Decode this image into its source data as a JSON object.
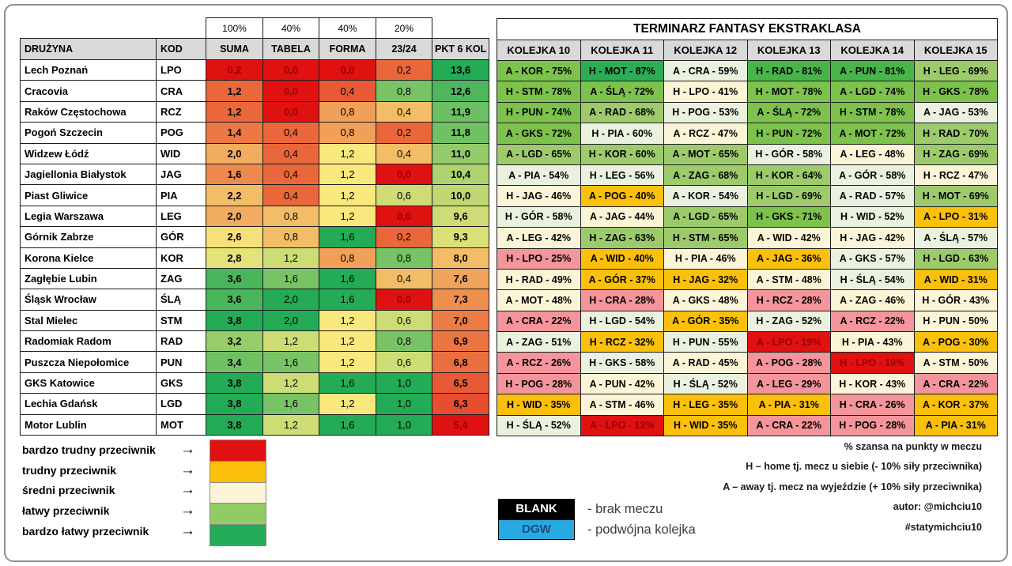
{
  "chart_data": [
    {
      "type": "table",
      "name": "team-difficulty-scores",
      "weights_row": [
        "100%",
        "40%",
        "40%",
        "20%"
      ],
      "headers": [
        "DRUŻYNA",
        "KOD",
        "SUMA",
        "TABELA",
        "FORMA",
        "23/24",
        "PKT 6 KOL"
      ],
      "value_keys": [
        "suma",
        "tabela",
        "forma",
        "s2324",
        "pkt"
      ],
      "color_scale": {
        "anchors": [
          "#E01111",
          "#F8E87D",
          "#23AB55"
        ],
        "dark_red_text": "#9C0006",
        "ranges": {
          "suma": [
            0.2,
            2.7,
            3.8
          ],
          "tabela": [
            0.0,
            1.0,
            2.0
          ],
          "forma": [
            0.0,
            1.2,
            1.6
          ],
          "s2324": [
            0.0,
            0.5,
            1.0
          ],
          "pkt": [
            5.4,
            8.65,
            13.6
          ]
        }
      },
      "rows": [
        {
          "team": "Lech Poznań",
          "kod": "LPO",
          "suma": 0.2,
          "tabela": 0.0,
          "forma": 0.0,
          "s2324": 0.2,
          "pkt": 13.6
        },
        {
          "team": "Cracovia",
          "kod": "CRA",
          "suma": 1.2,
          "tabela": 0.0,
          "forma": 0.4,
          "s2324": 0.8,
          "pkt": 12.6
        },
        {
          "team": "Raków Częstochowa",
          "kod": "RCZ",
          "suma": 1.2,
          "tabela": 0.0,
          "forma": 0.8,
          "s2324": 0.4,
          "pkt": 11.9
        },
        {
          "team": "Pogoń Szczecin",
          "kod": "POG",
          "suma": 1.4,
          "tabela": 0.4,
          "forma": 0.8,
          "s2324": 0.2,
          "pkt": 11.8
        },
        {
          "team": "Widzew Łódź",
          "kod": "WID",
          "suma": 2.0,
          "tabela": 0.4,
          "forma": 1.2,
          "s2324": 0.4,
          "pkt": 11.0
        },
        {
          "team": "Jagiellonia Białystok",
          "kod": "JAG",
          "suma": 1.6,
          "tabela": 0.4,
          "forma": 1.2,
          "s2324": 0.0,
          "pkt": 10.4
        },
        {
          "team": "Piast Gliwice",
          "kod": "PIA",
          "suma": 2.2,
          "tabela": 0.4,
          "forma": 1.2,
          "s2324": 0.6,
          "pkt": 10.0
        },
        {
          "team": "Legia Warszawa",
          "kod": "LEG",
          "suma": 2.0,
          "tabela": 0.8,
          "forma": 1.2,
          "s2324": 0.0,
          "pkt": 9.6
        },
        {
          "team": "Górnik Zabrze",
          "kod": "GÓR",
          "suma": 2.6,
          "tabela": 0.8,
          "forma": 1.6,
          "s2324": 0.2,
          "pkt": 9.3
        },
        {
          "team": "Korona Kielce",
          "kod": "KOR",
          "suma": 2.8,
          "tabela": 1.2,
          "forma": 0.8,
          "s2324": 0.8,
          "pkt": 8.0
        },
        {
          "team": "Zagłębie Lubin",
          "kod": "ZAG",
          "suma": 3.6,
          "tabela": 1.6,
          "forma": 1.6,
          "s2324": 0.4,
          "pkt": 7.6
        },
        {
          "team": "Śląsk Wrocław",
          "kod": "ŚLĄ",
          "suma": 3.6,
          "tabela": 2.0,
          "forma": 1.6,
          "s2324": 0.0,
          "pkt": 7.3
        },
        {
          "team": "Stal Mielec",
          "kod": "STM",
          "suma": 3.8,
          "tabela": 2.0,
          "forma": 1.2,
          "s2324": 0.6,
          "pkt": 7.0
        },
        {
          "team": "Radomiak Radom",
          "kod": "RAD",
          "suma": 3.2,
          "tabela": 1.2,
          "forma": 1.2,
          "s2324": 0.8,
          "pkt": 6.9
        },
        {
          "team": "Puszcza Niepołomice",
          "kod": "PUN",
          "suma": 3.4,
          "tabela": 1.6,
          "forma": 1.2,
          "s2324": 0.6,
          "pkt": 6.8
        },
        {
          "team": "GKS Katowice",
          "kod": "GKS",
          "suma": 3.8,
          "tabela": 1.2,
          "forma": 1.6,
          "s2324": 1.0,
          "pkt": 6.5
        },
        {
          "team": "Lechia Gdańsk",
          "kod": "LGD",
          "suma": 3.8,
          "tabela": 1.6,
          "forma": 1.2,
          "s2324": 1.0,
          "pkt": 6.3
        },
        {
          "team": "Motor Lublin",
          "kod": "MOT",
          "suma": 3.8,
          "tabela": 1.2,
          "forma": 1.6,
          "s2324": 1.0,
          "pkt": 5.4
        }
      ]
    },
    {
      "type": "heatmap",
      "name": "fixture-schedule",
      "title": "TERMINARZ FANTASY EKSTRAKLASA",
      "headers": [
        "KOLEJKA 10",
        "KOLEJKA 11",
        "KOLEJKA 12",
        "KOLEJKA 13",
        "KOLEJKA 14",
        "KOLEJKA 15"
      ],
      "difficulty_buckets": [
        {
          "max_pct": 20,
          "bg": "#E01111",
          "fg": "#9C0006"
        },
        {
          "max_pct": 29,
          "bg": "#F4949B"
        },
        {
          "max_pct": 40,
          "bg": "#FBC00C"
        },
        {
          "max_pct": 50,
          "bg": "#FCF4D6"
        },
        {
          "max_pct": 59,
          "bg": "#EAF1DF"
        },
        {
          "max_pct": 70,
          "bg": "#9DCB6C"
        },
        {
          "max_pct": 80,
          "bg": "#7DC24C"
        },
        {
          "max_pct": 85,
          "bg": "#48B54B"
        },
        {
          "max_pct": 100,
          "bg": "#2CAD55"
        }
      ],
      "cell_overrides": [
        {
          "row": 3,
          "col": 1,
          "bucket": 4
        }
      ],
      "rows": [
        [
          "A - KOR - 75%",
          "H - MOT - 87%",
          "A - CRA - 59%",
          "H - RAD - 81%",
          "A - PUN - 81%",
          "H - LEG - 69%"
        ],
        [
          "H - STM - 78%",
          "A - ŚLĄ - 72%",
          "H - LPO - 41%",
          "H - MOT - 78%",
          "A - LGD - 74%",
          "H - GKS - 78%"
        ],
        [
          "H - PUN - 74%",
          "A - RAD - 68%",
          "H - POG - 53%",
          "A - ŚLĄ - 72%",
          "H - STM - 78%",
          "A - JAG - 53%"
        ],
        [
          "A - GKS - 72%",
          "H - PIA - 60%",
          "A - RCZ - 47%",
          "H - PUN - 72%",
          "A - MOT - 72%",
          "H - RAD - 70%"
        ],
        [
          "A - LGD - 65%",
          "H - KOR - 60%",
          "A - MOT - 65%",
          "H - GÓR - 58%",
          "A - LEG - 48%",
          "H - ZAG - 69%"
        ],
        [
          "A - PIA - 54%",
          "H - LEG - 56%",
          "A - ZAG - 68%",
          "H - KOR - 64%",
          "A - GÓR - 58%",
          "H - RCZ - 47%"
        ],
        [
          "H - JAG - 46%",
          "A - POG - 40%",
          "A - KOR - 54%",
          "H - LGD - 69%",
          "A - RAD - 57%",
          "H - MOT - 69%"
        ],
        [
          "H - GÓR - 58%",
          "A - JAG - 44%",
          "A - LGD - 65%",
          "H - GKS - 71%",
          "H - WID - 52%",
          "A - LPO - 31%"
        ],
        [
          "A - LEG - 42%",
          "H - ZAG - 63%",
          "H - STM - 65%",
          "A - WID - 42%",
          "H - JAG - 42%",
          "A - ŚLĄ - 57%"
        ],
        [
          "H - LPO - 25%",
          "A - WID - 40%",
          "H - PIA - 46%",
          "A - JAG - 36%",
          "A - GKS - 57%",
          "H - LGD - 63%"
        ],
        [
          "H - RAD - 49%",
          "A - GÓR - 37%",
          "H - JAG - 32%",
          "A - STM - 48%",
          "H - ŚLĄ - 54%",
          "A - WID - 31%"
        ],
        [
          "A - MOT - 48%",
          "H - CRA - 28%",
          "A - GKS - 48%",
          "H - RCZ - 28%",
          "A - ZAG - 46%",
          "H - GÓR - 43%"
        ],
        [
          "A - CRA - 22%",
          "H - LGD - 54%",
          "A - GÓR - 35%",
          "H - ZAG - 52%",
          "A - RCZ - 22%",
          "H - PUN - 50%"
        ],
        [
          "A - ZAG - 51%",
          "H - RCZ - 32%",
          "H - PUN - 55%",
          "A - LPO - 19%",
          "H - PIA - 43%",
          "A - POG - 30%"
        ],
        [
          "A - RCZ - 26%",
          "H - GKS - 58%",
          "A - RAD - 45%",
          "A - POG - 28%",
          "H - LPO - 19%",
          "A - STM - 50%"
        ],
        [
          "H - POG - 28%",
          "A - PUN - 42%",
          "H - ŚLĄ - 52%",
          "A - LEG - 29%",
          "H - KOR - 43%",
          "A - CRA - 22%"
        ],
        [
          "H - WID - 35%",
          "A - STM - 46%",
          "H - LEG - 35%",
          "A - PIA - 31%",
          "H - CRA - 26%",
          "A - KOR - 37%"
        ],
        [
          "H - ŚLĄ - 52%",
          "A - LPO - 13%",
          "H - WID - 35%",
          "A - CRA - 22%",
          "H - POG - 28%",
          "A - PIA - 31%"
        ]
      ]
    }
  ],
  "legend": {
    "arrow": "→",
    "items": [
      {
        "label": "bardzo trudny przeciwnik",
        "color": "#E01111"
      },
      {
        "label": "trudny przeciwnik",
        "color": "#FBC00C"
      },
      {
        "label": "średni przeciwnik",
        "color": "#FCF4D6"
      },
      {
        "label": "łatwy przeciwnik",
        "color": "#92CB63"
      },
      {
        "label": "bardzo łatwy przeciwnik",
        "color": "#23AB55"
      }
    ]
  },
  "keys": {
    "blank": {
      "label": "BLANK",
      "desc": "- brak meczu",
      "bg": "#000000",
      "fg": "#FFFFFF"
    },
    "dgw": {
      "label": "DGW",
      "desc": "- podwójna kolejka",
      "bg": "#29A9E1",
      "fg": "#1F4E79"
    }
  },
  "notes": {
    "lines": [
      "% szansa na punkty w meczu",
      "H – home tj. mecz u siebie (- 10% siły przeciwnika)",
      "A – away tj. mecz na wyjeździe (+ 10% siły przeciwnika)",
      "autor: @michciu10",
      "#statymichciu10"
    ]
  }
}
